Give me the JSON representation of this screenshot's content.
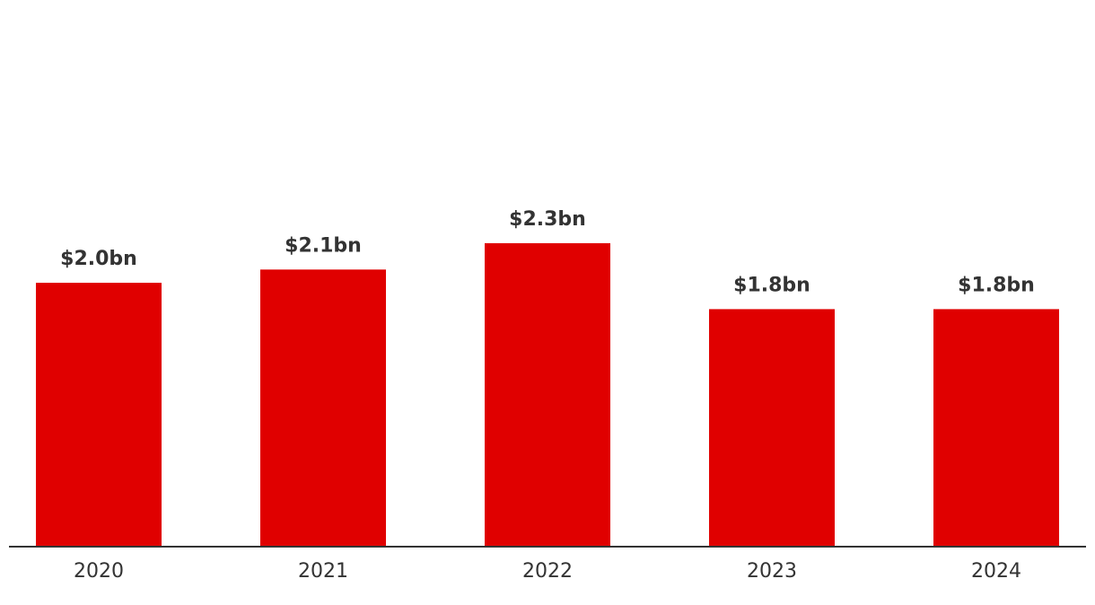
{
  "chart_data": {
    "type": "bar",
    "categories": [
      "2020",
      "2021",
      "2022",
      "2023",
      "2024"
    ],
    "values": [
      2.0,
      2.1,
      2.3,
      1.8,
      1.8
    ],
    "data_labels": [
      "$2.0bn",
      "$2.1bn",
      "$2.3bn",
      "$1.8bn",
      "$1.8bn"
    ],
    "title": "",
    "xlabel": "",
    "ylabel": "",
    "ylim": [
      0,
      4.0
    ],
    "grid": false,
    "legend": "none",
    "colors": {
      "bar": "#e00000",
      "axis": "#333333",
      "text": "#333333"
    }
  }
}
